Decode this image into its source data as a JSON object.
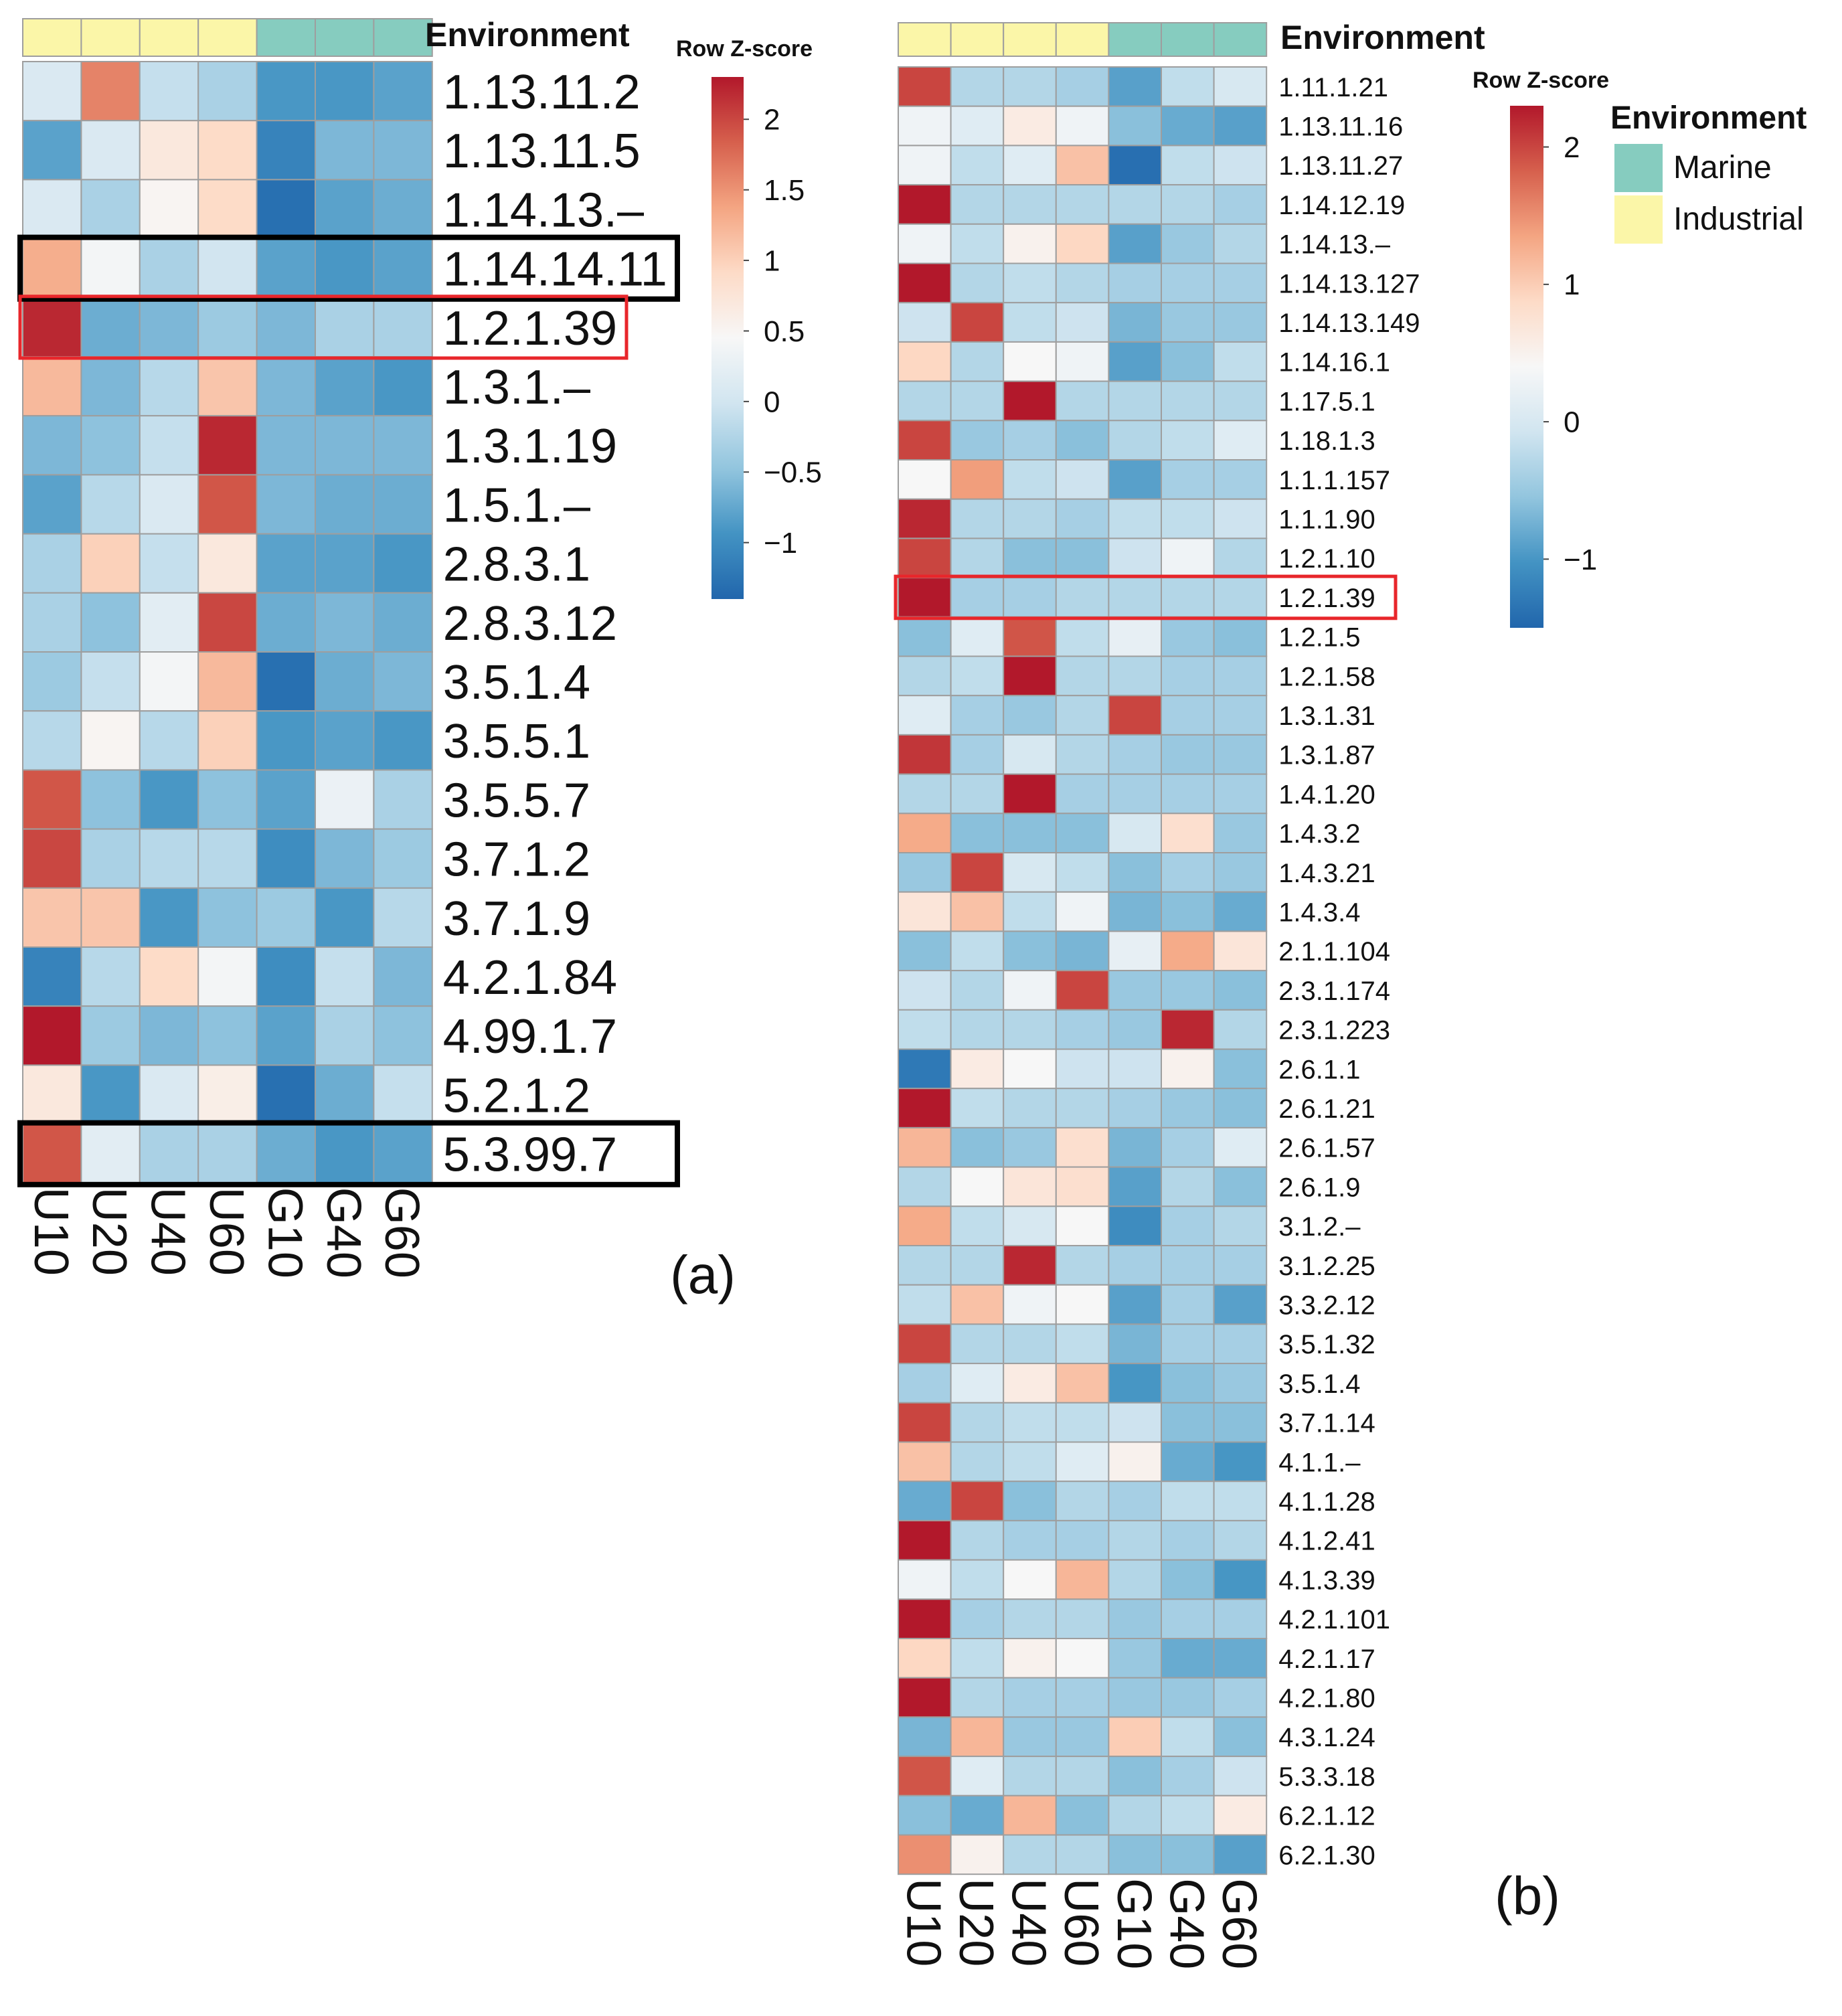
{
  "figure": {
    "panel_a_label": "(a)",
    "panel_b_label": "(b)"
  },
  "colors": {
    "marine": "#86CCBF",
    "industrial": "#FBF6A8",
    "scale": [
      "#2166AC",
      "#4393C3",
      "#92C5DE",
      "#D1E5F0",
      "#F7F7F7",
      "#FDDBC7",
      "#F4A582",
      "#D6604D",
      "#B2182B"
    ],
    "highlight_red": "#E8262B",
    "highlight_black": "#000000",
    "cell_border": "#9E9E9E"
  },
  "chart_data": [
    {
      "type": "heatmap",
      "panel": "(a)",
      "title": "",
      "annotation_title": "Environment",
      "columns": [
        "U10",
        "U20",
        "U40",
        "U60",
        "G10",
        "G40",
        "G60"
      ],
      "column_environment": [
        "Industrial",
        "Industrial",
        "Industrial",
        "Industrial",
        "Marine",
        "Marine",
        "Marine"
      ],
      "rows": [
        "1.13.11.2",
        "1.13.11.5",
        "1.14.13.–",
        "1.14.14.11",
        "1.2.1.39",
        "1.3.1.–",
        "1.3.1.19",
        "1.5.1.–",
        "2.8.3.1",
        "2.8.3.12",
        "3.5.1.4",
        "3.5.5.1",
        "3.5.5.7",
        "3.7.1.2",
        "3.7.1.9",
        "4.2.1.84",
        "4.99.1.7",
        "5.2.1.2",
        "5.3.99.7"
      ],
      "values": [
        [
          0.1,
          1.6,
          -0.1,
          -0.3,
          -0.9,
          -0.9,
          -0.8
        ],
        [
          -0.8,
          0.1,
          0.7,
          0.9,
          -1.1,
          -0.6,
          -0.6
        ],
        [
          0.1,
          -0.3,
          0.5,
          0.9,
          -1.3,
          -0.8,
          -0.7
        ],
        [
          1.3,
          0.4,
          -0.3,
          0.0,
          -0.8,
          -0.9,
          -0.8
        ],
        [
          2.2,
          -0.7,
          -0.6,
          -0.4,
          -0.6,
          -0.3,
          -0.3
        ],
        [
          1.2,
          -0.6,
          -0.2,
          1.1,
          -0.6,
          -0.8,
          -0.9
        ],
        [
          -0.6,
          -0.5,
          -0.1,
          2.2,
          -0.6,
          -0.6,
          -0.6
        ],
        [
          -0.8,
          -0.2,
          0.1,
          1.9,
          -0.6,
          -0.7,
          -0.7
        ],
        [
          -0.3,
          1.0,
          -0.1,
          0.7,
          -0.8,
          -0.8,
          -0.9
        ],
        [
          -0.3,
          -0.5,
          0.2,
          2.0,
          -0.7,
          -0.6,
          -0.7
        ],
        [
          -0.4,
          -0.1,
          0.4,
          1.2,
          -1.3,
          -0.7,
          -0.6
        ],
        [
          -0.2,
          0.5,
          -0.2,
          1.0,
          -0.9,
          -0.8,
          -0.9
        ],
        [
          1.9,
          -0.5,
          -0.9,
          -0.5,
          -0.8,
          0.3,
          -0.3
        ],
        [
          2.0,
          -0.3,
          -0.2,
          -0.2,
          -1.0,
          -0.6,
          -0.4
        ],
        [
          1.1,
          1.1,
          -0.9,
          -0.5,
          -0.4,
          -0.9,
          -0.2
        ],
        [
          -1.1,
          -0.2,
          0.9,
          0.4,
          -1.0,
          -0.1,
          -0.6
        ],
        [
          2.3,
          -0.4,
          -0.6,
          -0.5,
          -0.8,
          -0.3,
          -0.5
        ],
        [
          0.7,
          -0.9,
          0.1,
          0.6,
          -1.3,
          -0.7,
          -0.1
        ],
        [
          1.9,
          0.2,
          -0.3,
          -0.3,
          -0.7,
          -0.9,
          -0.8
        ]
      ],
      "highlight_rows": [
        {
          "row": "1.14.14.11",
          "color": "black"
        },
        {
          "row": "1.2.1.39",
          "color": "red"
        },
        {
          "row": "5.3.99.7",
          "color": "black"
        }
      ],
      "legend": {
        "title": "Row Z-score",
        "range": [
          -1.4,
          2.3
        ],
        "ticks": [
          2,
          1.5,
          1,
          0.5,
          0,
          -0.5,
          -1
        ],
        "tick_labels": [
          "2",
          "1.5",
          "1",
          "0.5",
          "0",
          "−0.5",
          "−1"
        ]
      }
    },
    {
      "type": "heatmap",
      "panel": "(b)",
      "title": "",
      "annotation_title": "Environment",
      "columns": [
        "U10",
        "U20",
        "U40",
        "U60",
        "G10",
        "G40",
        "G60"
      ],
      "column_environment": [
        "Industrial",
        "Industrial",
        "Industrial",
        "Industrial",
        "Marine",
        "Marine",
        "Marine"
      ],
      "rows": [
        "1.11.1.21",
        "1.13.11.16",
        "1.13.11.27",
        "1.14.12.19",
        "1.14.13.–",
        "1.14.13.127",
        "1.14.13.149",
        "1.14.16.1",
        "1.17.5.1",
        "1.18.1.3",
        "1.1.1.157",
        "1.1.1.90",
        "1.2.1.10",
        "1.2.1.39",
        "1.2.1.5",
        "1.2.1.58",
        "1.3.1.31",
        "1.3.1.87",
        "1.4.1.20",
        "1.4.3.2",
        "1.4.3.21",
        "1.4.3.4",
        "2.1.1.104",
        "2.3.1.174",
        "2.3.1.223",
        "2.6.1.1",
        "2.6.1.21",
        "2.6.1.57",
        "2.6.1.9",
        "3.1.2.–",
        "3.1.2.25",
        "3.3.2.12",
        "3.5.1.32",
        "3.5.1.4",
        "3.7.1.14",
        "4.1.1.–",
        "4.1.1.28",
        "4.1.2.41",
        "4.1.3.39",
        "4.2.1.101",
        "4.2.1.17",
        "4.2.1.80",
        "4.3.1.24",
        "5.3.3.18",
        "6.2.1.12",
        "6.2.1.30"
      ],
      "values": [
        [
          2.0,
          -0.3,
          -0.3,
          -0.4,
          -0.9,
          -0.2,
          0.0
        ],
        [
          0.3,
          0.1,
          0.6,
          0.3,
          -0.6,
          -0.8,
          -0.9
        ],
        [
          0.3,
          -0.2,
          0.1,
          1.1,
          -1.4,
          -0.2,
          -0.1
        ],
        [
          2.3,
          -0.3,
          -0.3,
          -0.3,
          -0.3,
          -0.3,
          -0.4
        ],
        [
          0.3,
          -0.2,
          0.5,
          0.9,
          -0.9,
          -0.5,
          -0.3
        ],
        [
          2.3,
          -0.3,
          -0.2,
          -0.3,
          -0.4,
          -0.4,
          -0.4
        ],
        [
          -0.1,
          2.0,
          -0.2,
          -0.1,
          -0.7,
          -0.5,
          -0.5
        ],
        [
          0.9,
          -0.3,
          0.4,
          0.3,
          -0.9,
          -0.6,
          -0.2
        ],
        [
          -0.3,
          -0.3,
          2.3,
          -0.3,
          -0.3,
          -0.3,
          -0.3
        ],
        [
          2.0,
          -0.5,
          -0.4,
          -0.6,
          -0.3,
          -0.2,
          0.1
        ],
        [
          0.4,
          1.4,
          -0.2,
          -0.1,
          -0.9,
          -0.4,
          -0.4
        ],
        [
          2.2,
          -0.3,
          -0.3,
          -0.4,
          -0.2,
          -0.2,
          -0.1
        ],
        [
          2.0,
          -0.3,
          -0.6,
          -0.6,
          -0.1,
          0.3,
          -0.3
        ],
        [
          2.3,
          -0.4,
          -0.4,
          -0.3,
          -0.3,
          -0.3,
          -0.3
        ],
        [
          -0.6,
          0.1,
          1.9,
          -0.2,
          0.2,
          -0.5,
          -0.6
        ],
        [
          -0.3,
          -0.2,
          2.3,
          -0.3,
          -0.3,
          -0.4,
          -0.4
        ],
        [
          0.1,
          -0.4,
          -0.5,
          -0.3,
          2.0,
          -0.4,
          -0.4
        ],
        [
          2.1,
          -0.4,
          0.0,
          -0.3,
          -0.4,
          -0.5,
          -0.5
        ],
        [
          -0.3,
          -0.3,
          2.3,
          -0.4,
          -0.4,
          -0.4,
          -0.4
        ],
        [
          1.3,
          -0.6,
          -0.6,
          -0.6,
          0.0,
          0.8,
          -0.5
        ],
        [
          -0.5,
          2.0,
          0.0,
          -0.2,
          -0.6,
          -0.4,
          -0.5
        ],
        [
          0.7,
          1.1,
          -0.2,
          0.3,
          -0.7,
          -0.6,
          -0.8
        ],
        [
          -0.6,
          -0.2,
          -0.6,
          -0.7,
          0.2,
          1.3,
          0.7
        ],
        [
          -0.1,
          -0.3,
          0.3,
          2.0,
          -0.5,
          -0.5,
          -0.6
        ],
        [
          -0.2,
          -0.3,
          -0.3,
          -0.4,
          -0.5,
          2.2,
          -0.3
        ],
        [
          -1.3,
          0.6,
          0.4,
          -0.1,
          -0.1,
          0.5,
          -0.6
        ],
        [
          2.3,
          -0.2,
          -0.3,
          -0.3,
          -0.4,
          -0.5,
          -0.6
        ],
        [
          1.2,
          -0.6,
          -0.5,
          0.8,
          -0.7,
          -0.4,
          0.1
        ],
        [
          -0.3,
          0.4,
          0.7,
          0.8,
          -0.9,
          -0.3,
          -0.6
        ],
        [
          1.3,
          -0.2,
          0.0,
          0.4,
          -1.1,
          -0.4,
          -0.3
        ],
        [
          -0.3,
          -0.3,
          2.2,
          -0.3,
          -0.4,
          -0.4,
          -0.4
        ],
        [
          -0.2,
          1.1,
          0.3,
          0.4,
          -0.9,
          -0.4,
          -0.9
        ],
        [
          2.0,
          -0.3,
          -0.3,
          -0.2,
          -0.7,
          -0.4,
          -0.4
        ],
        [
          -0.4,
          0.1,
          0.6,
          1.1,
          -1.0,
          -0.6,
          -0.5
        ],
        [
          2.0,
          -0.3,
          -0.2,
          -0.2,
          -0.1,
          -0.6,
          -0.6
        ],
        [
          1.1,
          -0.3,
          -0.2,
          0.1,
          0.5,
          -0.8,
          -1.0
        ],
        [
          -0.8,
          2.0,
          -0.6,
          -0.3,
          -0.4,
          -0.2,
          -0.2
        ],
        [
          2.3,
          -0.3,
          -0.4,
          -0.4,
          -0.3,
          -0.4,
          -0.3
        ],
        [
          0.3,
          -0.2,
          0.4,
          1.2,
          -0.3,
          -0.6,
          -1.0
        ],
        [
          2.3,
          -0.4,
          -0.3,
          -0.3,
          -0.5,
          -0.4,
          -0.4
        ],
        [
          0.9,
          -0.2,
          0.5,
          0.4,
          -0.5,
          -0.8,
          -0.8
        ],
        [
          2.3,
          -0.3,
          -0.4,
          -0.4,
          -0.5,
          -0.5,
          -0.4
        ],
        [
          -0.7,
          1.2,
          -0.5,
          -0.5,
          1.0,
          -0.2,
          -0.6
        ],
        [
          1.9,
          0.1,
          -0.3,
          -0.3,
          -0.6,
          -0.4,
          -0.1
        ],
        [
          -0.6,
          -0.8,
          1.2,
          -0.6,
          -0.3,
          -0.2,
          0.6
        ],
        [
          1.5,
          0.5,
          -0.3,
          -0.3,
          -0.6,
          -0.6,
          -0.9
        ]
      ],
      "highlight_rows": [
        {
          "row": "1.2.1.39",
          "color": "red"
        }
      ],
      "legend": {
        "title": "Row Z-score",
        "range": [
          -1.5,
          2.3
        ],
        "ticks": [
          2,
          1,
          0,
          -1
        ],
        "tick_labels": [
          "2",
          "1",
          "0",
          "−1"
        ]
      },
      "environment_legend": {
        "title": "Environment",
        "items": [
          {
            "label": "Marine",
            "color": "#86CCBF"
          },
          {
            "label": "Industrial",
            "color": "#FBF6A8"
          }
        ]
      }
    }
  ]
}
